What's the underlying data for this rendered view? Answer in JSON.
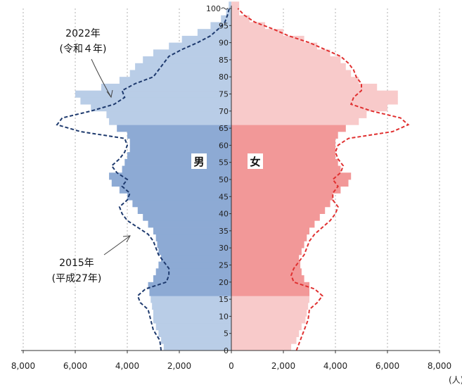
{
  "chart_data": {
    "type": "bar",
    "orientation": "horizontal",
    "subtype": "population-pyramid",
    "title": "",
    "xlabel": "",
    "ylabel": "",
    "unit_label": "(人)",
    "xlim": [
      -8000,
      8000
    ],
    "x_tick_values": [
      -8000,
      -6000,
      -4000,
      -2000,
      0,
      2000,
      4000,
      6000,
      8000
    ],
    "x_tick_labels": [
      "8,000",
      "6,000",
      "4,000",
      "2,000",
      "0",
      "2,000",
      "4,000",
      "6,000",
      "8,000"
    ],
    "ylim": [
      0,
      100
    ],
    "y_tick_values": [
      0,
      5,
      10,
      15,
      20,
      25,
      30,
      35,
      40,
      45,
      50,
      55,
      60,
      65,
      70,
      75,
      80,
      85,
      90,
      95,
      100
    ],
    "y_tick_labels": [
      "0",
      "5",
      "10",
      "15",
      "20",
      "25",
      "30",
      "35",
      "40",
      "45",
      "50",
      "55",
      "60",
      "65",
      "70",
      "75",
      "80",
      "85",
      "90",
      "95",
      "100〜"
    ],
    "grid": "vertical dashed",
    "sex_labels": {
      "male": "男",
      "female": "女"
    },
    "colors": {
      "male_light": "#b9cde7",
      "male_mid": "#8daad4",
      "female_light": "#f8caca",
      "female_mid": "#f29898",
      "line_2015": "#1e3a6e",
      "line_2022": "#1e3a6e",
      "line_female": "#e03030"
    },
    "bands": [
      {
        "from": 0,
        "to": 14,
        "shade": "light"
      },
      {
        "from": 15,
        "to": 64,
        "shade": "mid"
      },
      {
        "from": 65,
        "to": 100,
        "shade": "light"
      }
    ],
    "series": [
      {
        "name": "2022年",
        "kind": "bars",
        "male": [
          [
            0,
            2600
          ],
          [
            2,
            2700
          ],
          [
            4,
            2800
          ],
          [
            6,
            2900
          ],
          [
            8,
            3000
          ],
          [
            10,
            3000
          ],
          [
            12,
            3050
          ],
          [
            14,
            3100
          ],
          [
            16,
            3150
          ],
          [
            18,
            3200
          ],
          [
            20,
            3000
          ],
          [
            22,
            2900
          ],
          [
            24,
            2800
          ],
          [
            26,
            2700
          ],
          [
            28,
            2800
          ],
          [
            30,
            2850
          ],
          [
            32,
            2900
          ],
          [
            34,
            3000
          ],
          [
            36,
            3200
          ],
          [
            38,
            3400
          ],
          [
            40,
            3600
          ],
          [
            42,
            3800
          ],
          [
            44,
            4000
          ],
          [
            46,
            4300
          ],
          [
            48,
            4600
          ],
          [
            50,
            4700
          ],
          [
            52,
            4200
          ],
          [
            54,
            4100
          ],
          [
            56,
            4000
          ],
          [
            58,
            3900
          ],
          [
            60,
            3900
          ],
          [
            62,
            4000
          ],
          [
            64,
            4400
          ],
          [
            66,
            4700
          ],
          [
            68,
            4800
          ],
          [
            70,
            5400
          ],
          [
            72,
            5800
          ],
          [
            74,
            6000
          ],
          [
            76,
            5000
          ],
          [
            78,
            4300
          ],
          [
            80,
            3900
          ],
          [
            82,
            3700
          ],
          [
            84,
            3400
          ],
          [
            86,
            3000
          ],
          [
            88,
            2400
          ],
          [
            90,
            1900
          ],
          [
            92,
            1300
          ],
          [
            94,
            800
          ],
          [
            96,
            400
          ],
          [
            98,
            200
          ],
          [
            100,
            100
          ]
        ],
        "female": [
          [
            0,
            2300
          ],
          [
            2,
            2500
          ],
          [
            4,
            2600
          ],
          [
            6,
            2700
          ],
          [
            8,
            2850
          ],
          [
            10,
            2900
          ],
          [
            12,
            2950
          ],
          [
            14,
            3000
          ],
          [
            16,
            3000
          ],
          [
            18,
            3000
          ],
          [
            20,
            2800
          ],
          [
            22,
            2700
          ],
          [
            24,
            2650
          ],
          [
            26,
            2600
          ],
          [
            28,
            2700
          ],
          [
            30,
            2800
          ],
          [
            32,
            2900
          ],
          [
            34,
            3000
          ],
          [
            36,
            3200
          ],
          [
            38,
            3400
          ],
          [
            40,
            3600
          ],
          [
            42,
            3800
          ],
          [
            44,
            3900
          ],
          [
            46,
            4200
          ],
          [
            48,
            4500
          ],
          [
            50,
            4600
          ],
          [
            52,
            4200
          ],
          [
            54,
            4100
          ],
          [
            56,
            4000
          ],
          [
            58,
            4000
          ],
          [
            60,
            4000
          ],
          [
            62,
            4100
          ],
          [
            64,
            4400
          ],
          [
            66,
            4900
          ],
          [
            68,
            5200
          ],
          [
            70,
            6000
          ],
          [
            72,
            6400
          ],
          [
            74,
            6400
          ],
          [
            76,
            5600
          ],
          [
            78,
            4900
          ],
          [
            80,
            4600
          ],
          [
            82,
            4400
          ],
          [
            84,
            4200
          ],
          [
            86,
            3800
          ],
          [
            88,
            3300
          ],
          [
            90,
            2800
          ],
          [
            92,
            2000
          ],
          [
            94,
            1300
          ],
          [
            96,
            700
          ],
          [
            98,
            300
          ],
          [
            100,
            300
          ]
        ]
      },
      {
        "name": "2015年",
        "kind": "line",
        "male": [
          [
            0,
            2700
          ],
          [
            3,
            2750
          ],
          [
            6,
            3000
          ],
          [
            9,
            3100
          ],
          [
            12,
            3200
          ],
          [
            14,
            3500
          ],
          [
            16,
            3600
          ],
          [
            18,
            3300
          ],
          [
            20,
            2500
          ],
          [
            22,
            2400
          ],
          [
            24,
            2400
          ],
          [
            26,
            2600
          ],
          [
            28,
            2800
          ],
          [
            30,
            2900
          ],
          [
            32,
            3000
          ],
          [
            34,
            3200
          ],
          [
            36,
            3600
          ],
          [
            38,
            4000
          ],
          [
            40,
            4200
          ],
          [
            42,
            4300
          ],
          [
            44,
            4000
          ],
          [
            46,
            3900
          ],
          [
            48,
            4200
          ],
          [
            50,
            4000
          ],
          [
            52,
            4400
          ],
          [
            54,
            4600
          ],
          [
            56,
            4300
          ],
          [
            58,
            4100
          ],
          [
            60,
            4000
          ],
          [
            62,
            4100
          ],
          [
            64,
            5800
          ],
          [
            66,
            6700
          ],
          [
            68,
            6500
          ],
          [
            70,
            5400
          ],
          [
            72,
            4500
          ],
          [
            74,
            4100
          ],
          [
            76,
            4200
          ],
          [
            78,
            3700
          ],
          [
            80,
            3000
          ],
          [
            82,
            2800
          ],
          [
            84,
            2600
          ],
          [
            86,
            2400
          ],
          [
            88,
            1900
          ],
          [
            90,
            1300
          ],
          [
            92,
            800
          ],
          [
            94,
            500
          ],
          [
            96,
            250
          ],
          [
            98,
            150
          ],
          [
            100,
            80
          ]
        ],
        "female": [
          [
            0,
            2500
          ],
          [
            3,
            2650
          ],
          [
            6,
            2800
          ],
          [
            9,
            2950
          ],
          [
            12,
            3000
          ],
          [
            14,
            3300
          ],
          [
            16,
            3500
          ],
          [
            18,
            3200
          ],
          [
            20,
            2400
          ],
          [
            22,
            2300
          ],
          [
            24,
            2400
          ],
          [
            26,
            2600
          ],
          [
            28,
            2800
          ],
          [
            30,
            2900
          ],
          [
            32,
            3000
          ],
          [
            34,
            3200
          ],
          [
            36,
            3500
          ],
          [
            38,
            3800
          ],
          [
            40,
            4000
          ],
          [
            42,
            4100
          ],
          [
            44,
            3900
          ],
          [
            46,
            3900
          ],
          [
            48,
            4100
          ],
          [
            50,
            3900
          ],
          [
            52,
            4200
          ],
          [
            54,
            4300
          ],
          [
            56,
            4100
          ],
          [
            58,
            4000
          ],
          [
            60,
            4100
          ],
          [
            62,
            4500
          ],
          [
            64,
            6200
          ],
          [
            66,
            6800
          ],
          [
            68,
            6500
          ],
          [
            70,
            5400
          ],
          [
            72,
            4600
          ],
          [
            74,
            4700
          ],
          [
            76,
            5000
          ],
          [
            78,
            5000
          ],
          [
            80,
            4800
          ],
          [
            82,
            4700
          ],
          [
            84,
            4500
          ],
          [
            86,
            4200
          ],
          [
            88,
            3600
          ],
          [
            90,
            3000
          ],
          [
            92,
            2200
          ],
          [
            94,
            1600
          ],
          [
            96,
            900
          ],
          [
            98,
            500
          ],
          [
            100,
            250
          ]
        ]
      }
    ],
    "annotations": [
      {
        "id": "y2022",
        "line1": "2022年",
        "line2": "(令和４年)"
      },
      {
        "id": "y2015",
        "line1": "2015年",
        "line2": "(平成27年)"
      }
    ]
  }
}
